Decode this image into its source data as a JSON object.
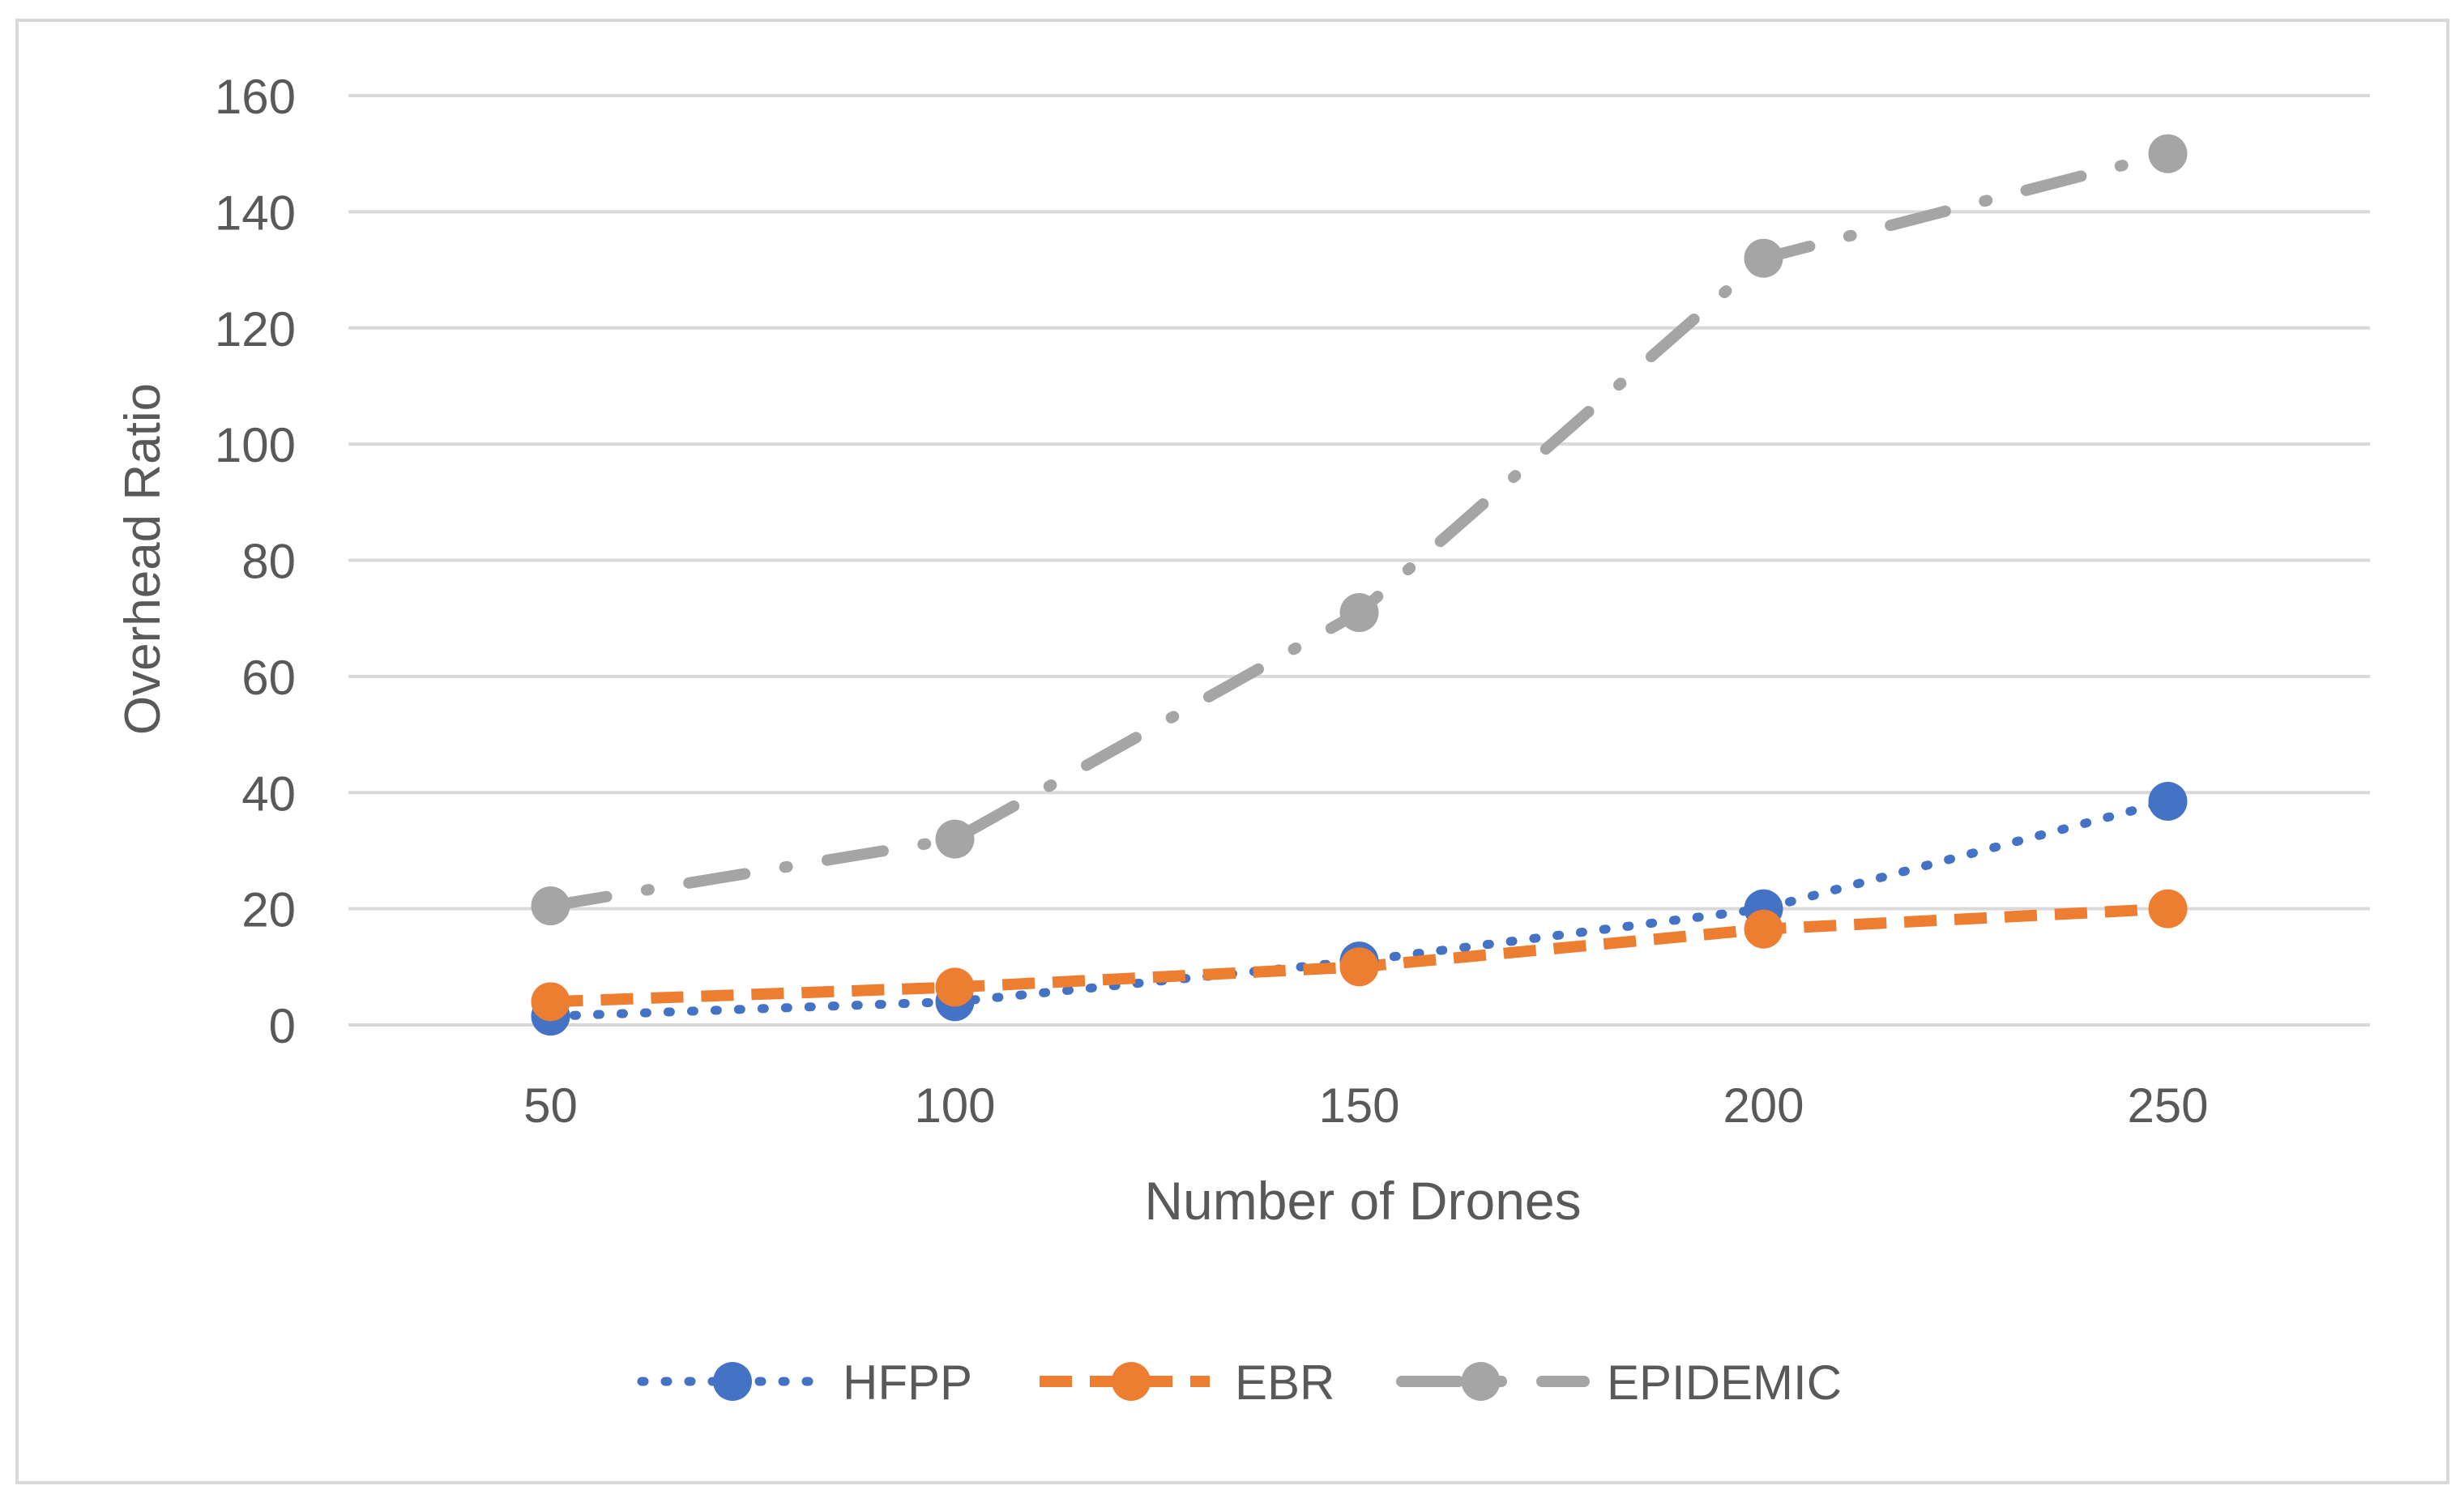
{
  "chart_data": {
    "type": "line",
    "title": "",
    "xlabel": "Number of Drones",
    "ylabel": "Overhead Ratio",
    "categories": [
      "50",
      "100",
      "150",
      "200",
      "250"
    ],
    "x": [
      50,
      100,
      150,
      200,
      250
    ],
    "ylim": [
      0,
      160
    ],
    "yticks": [
      0,
      20,
      40,
      60,
      80,
      100,
      120,
      140,
      160
    ],
    "grid": true,
    "legend_position": "bottom",
    "series": [
      {
        "name": "HFPP",
        "values": [
          1.5,
          4,
          11,
          20,
          38.5
        ],
        "color": "#4472C4",
        "style": "dotted"
      },
      {
        "name": "EBR",
        "values": [
          4,
          6.5,
          10,
          16.5,
          20
        ],
        "color": "#ED7D31",
        "style": "dashed"
      },
      {
        "name": "EPIDEMIC",
        "values": [
          20.5,
          32,
          71,
          132,
          150
        ],
        "color": "#A5A5A5",
        "style": "long-dash-dot"
      }
    ]
  }
}
